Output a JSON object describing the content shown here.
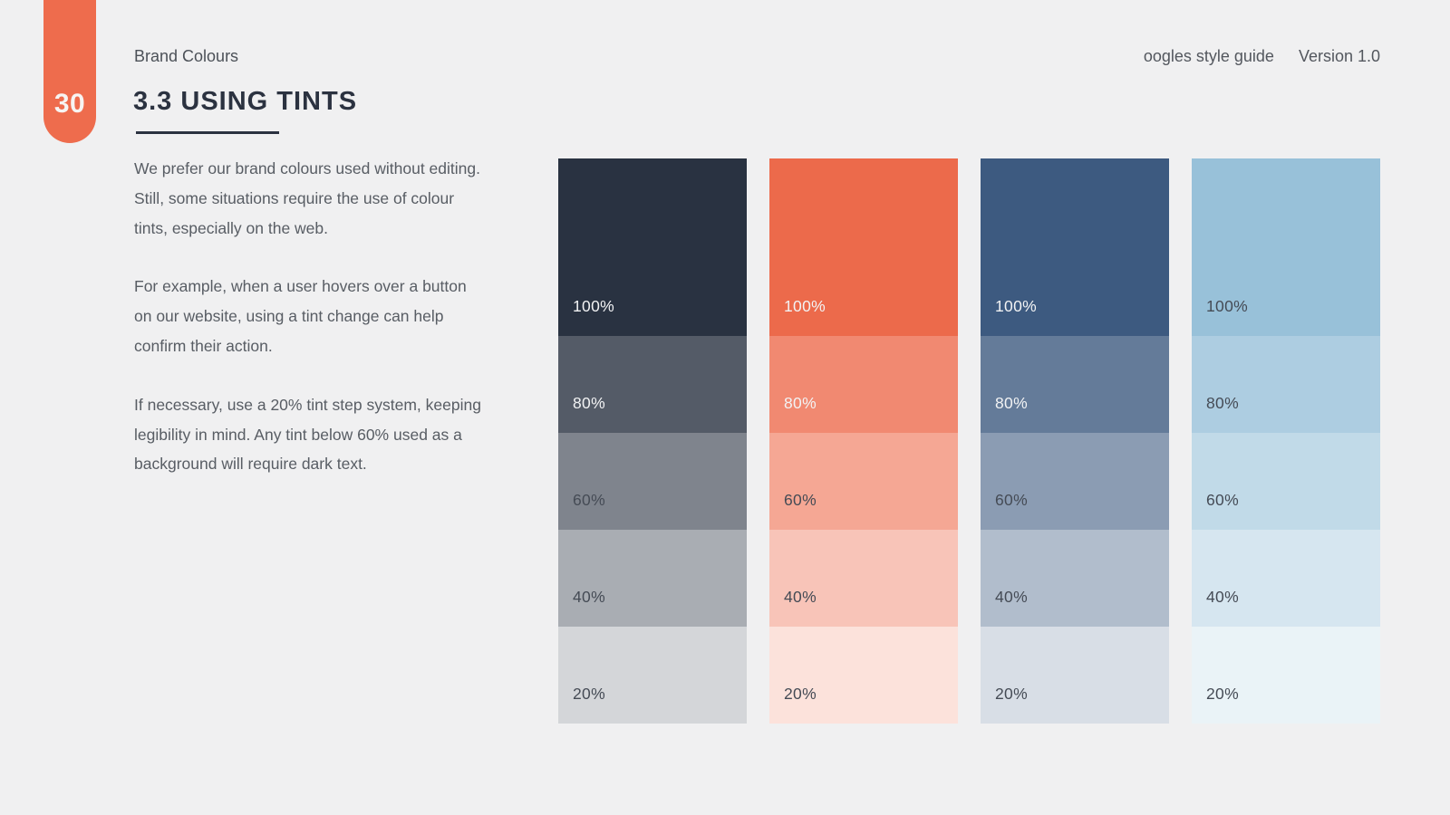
{
  "page": {
    "number": "30",
    "accent_color": "#EE6C4D",
    "background_color": "#F0F0F1"
  },
  "header": {
    "section_label": "Brand Colours",
    "document_title": "oogles style guide",
    "version_label": "Version 1.0"
  },
  "title": {
    "heading": "3.3 USING TINTS"
  },
  "paragraphs": [
    {
      "lines": [
        "We prefer our brand colours used without editing.",
        "Still, some situations require the use of colour",
        "tints, especially on the web."
      ]
    },
    {
      "lines": [
        "For example, when a user hovers over a button",
        "on our website, using a tint change can help",
        "confirm their action."
      ]
    },
    {
      "lines": [
        "If necessary, use a 20% tint step system, keeping",
        "legibility in mind. Any tint below 60% used as a",
        "background will require dark text."
      ]
    }
  ],
  "tints": {
    "step_labels": [
      "100%",
      "80%",
      "60%",
      "40%",
      "20%"
    ],
    "light_text_color": "#F2F3F4",
    "dark_text_color": "#454B55",
    "columns": [
      {
        "name": "gunmetal",
        "base_color": "#293241",
        "swatches": [
          {
            "label": "100%",
            "color": "#293241",
            "text": "light"
          },
          {
            "label": "80%",
            "color": "#545B67",
            "text": "light"
          },
          {
            "label": "60%",
            "color": "#7F848D",
            "text": "dark"
          },
          {
            "label": "40%",
            "color": "#A9ADB3",
            "text": "dark"
          },
          {
            "label": "20%",
            "color": "#D4D6D9",
            "text": "dark"
          }
        ]
      },
      {
        "name": "burnt-sienna",
        "base_color": "#EE6C4D",
        "swatches": [
          {
            "label": "100%",
            "color": "#EC6A4B",
            "text": "light"
          },
          {
            "label": "80%",
            "color": "#F18971",
            "text": "light"
          },
          {
            "label": "60%",
            "color": "#F5A794",
            "text": "dark"
          },
          {
            "label": "40%",
            "color": "#F8C4B8",
            "text": "dark"
          },
          {
            "label": "20%",
            "color": "#FCE2DB",
            "text": "dark"
          }
        ]
      },
      {
        "name": "bdazzled-blue",
        "base_color": "#3D5A80",
        "swatches": [
          {
            "label": "100%",
            "color": "#3D5A80",
            "text": "light"
          },
          {
            "label": "80%",
            "color": "#647B99",
            "text": "light"
          },
          {
            "label": "60%",
            "color": "#8B9CB3",
            "text": "dark"
          },
          {
            "label": "40%",
            "color": "#B1BDCC",
            "text": "dark"
          },
          {
            "label": "20%",
            "color": "#D8DEE6",
            "text": "dark"
          }
        ]
      },
      {
        "name": "pale-cerulean",
        "base_color": "#98C1D9",
        "swatches": [
          {
            "label": "100%",
            "color": "#98C1D9",
            "text": "dark"
          },
          {
            "label": "80%",
            "color": "#ADCDE1",
            "text": "dark"
          },
          {
            "label": "60%",
            "color": "#C1DAE8",
            "text": "dark"
          },
          {
            "label": "40%",
            "color": "#D6E6F0",
            "text": "dark"
          },
          {
            "label": "20%",
            "color": "#EAF3F7",
            "text": "dark"
          }
        ]
      }
    ]
  }
}
